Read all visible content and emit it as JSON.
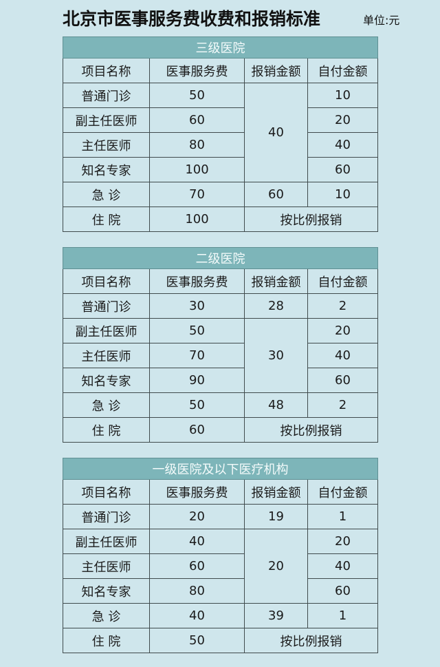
{
  "title": "北京市医事服务费收费和报销标准",
  "unit": "单位:元",
  "columns": [
    "项目名称",
    "医事服务费",
    "报销金额",
    "自付金额"
  ],
  "tables": [
    {
      "band": "三级医院",
      "rows": [
        {
          "name": "普通门诊",
          "fee": "50",
          "self": "10"
        },
        {
          "name": "副主任医师",
          "fee": "60",
          "self": "20"
        },
        {
          "name": "主任医师",
          "fee": "80",
          "self": "40"
        },
        {
          "name": "知名专家",
          "fee": "100",
          "self": "60"
        },
        {
          "name": "急 诊",
          "fee": "70",
          "reimb": "60",
          "self": "10"
        },
        {
          "name": "住 院",
          "fee": "100",
          "merged": "按比例报销"
        }
      ],
      "shared_reimb": "40"
    },
    {
      "band": "二级医院",
      "rows": [
        {
          "name": "普通门诊",
          "fee": "30",
          "reimb": "28",
          "self": "2"
        },
        {
          "name": "副主任医师",
          "fee": "50",
          "self": "20"
        },
        {
          "name": "主任医师",
          "fee": "70",
          "self": "40"
        },
        {
          "name": "知名专家",
          "fee": "90",
          "self": "60"
        },
        {
          "name": "急 诊",
          "fee": "50",
          "reimb": "48",
          "self": "2"
        },
        {
          "name": "住 院",
          "fee": "60",
          "merged": "按比例报销"
        }
      ],
      "shared_reimb": "30"
    },
    {
      "band": "一级医院及以下医疗机构",
      "rows": [
        {
          "name": "普通门诊",
          "fee": "20",
          "reimb": "19",
          "self": "1"
        },
        {
          "name": "副主任医师",
          "fee": "40",
          "self": "20"
        },
        {
          "name": "主任医师",
          "fee": "60",
          "self": "40"
        },
        {
          "name": "知名专家",
          "fee": "80",
          "self": "60"
        },
        {
          "name": "急 诊",
          "fee": "40",
          "reimb": "39",
          "self": "1"
        },
        {
          "name": "住 院",
          "fee": "50",
          "merged": "按比例报销"
        }
      ],
      "shared_reimb": "20"
    }
  ]
}
